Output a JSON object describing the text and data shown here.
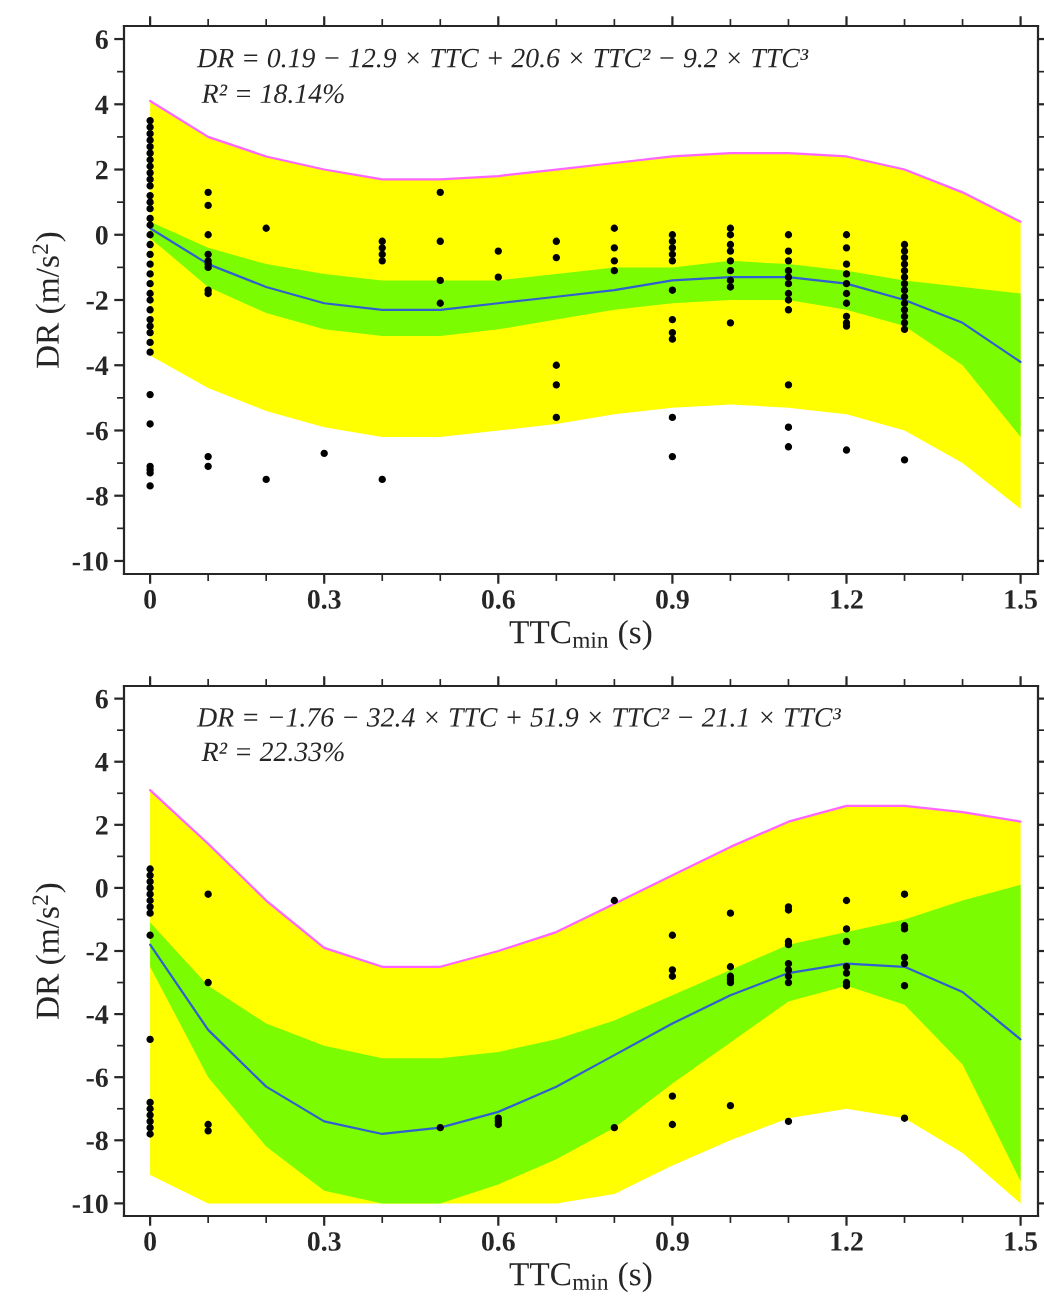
{
  "chart_data": [
    {
      "type": "scatter",
      "xlabel": "TTC$_{min}$ (s)",
      "ylabel": "DR (m/s$^{2}$)",
      "annotations": [
        "DR = 0.19 − 12.9 × TTC + 20.6 × TTC² − 9.2 × TTC³",
        "R² = 18.14%"
      ],
      "xlim": [
        -0.045,
        1.53
      ],
      "ylim": [
        -10.4,
        6.4
      ],
      "xticks": [
        0,
        0.3,
        0.6,
        0.9,
        1.2,
        1.5
      ],
      "yticks": [
        {
          "value": -10,
          "label": "-10"
        },
        {
          "value": -8,
          "label": "-8"
        },
        {
          "value": -6,
          "label": "-6"
        },
        {
          "value": -4,
          "label": "-4"
        },
        {
          "value": -2,
          "label": "-2"
        },
        0,
        2,
        4,
        6
      ],
      "series": [
        {
          "type": "line",
          "color": "#ff66ff",
          "x": [
            0,
            0.1,
            0.2,
            0.3,
            0.4,
            0.5,
            0.6,
            0.7,
            0.8,
            0.9,
            1.0,
            1.1,
            1.2,
            1.3,
            1.4,
            1.5
          ],
          "values": [
            4.1,
            3.0,
            2.4,
            2.0,
            1.7,
            1.7,
            1.8,
            2.0,
            2.2,
            2.4,
            2.5,
            2.5,
            2.4,
            2.0,
            1.3,
            0.4
          ],
          "upper": [
            4.1,
            3.0,
            2.4,
            2.0,
            1.7,
            1.7,
            1.8,
            2.0,
            2.2,
            2.4,
            2.5,
            2.5,
            2.4,
            2.0,
            1.3,
            0.4
          ],
          "lower": [
            -3.7,
            -4.7,
            -5.4,
            -5.9,
            -6.2,
            -6.2,
            -6.0,
            -5.8,
            -5.5,
            -5.3,
            -5.2,
            -5.3,
            -5.5,
            -6.0,
            -7.0,
            -8.4
          ]
        },
        {
          "type": "line",
          "color": "#3060d0",
          "x": [
            0,
            0.1,
            0.2,
            0.3,
            0.4,
            0.5,
            0.6,
            0.7,
            0.8,
            0.9,
            1.0,
            1.1,
            1.2,
            1.3,
            1.4,
            1.5
          ],
          "values": [
            0.2,
            -0.9,
            -1.6,
            -2.1,
            -2.3,
            -2.3,
            -2.1,
            -1.9,
            -1.7,
            -1.4,
            -1.3,
            -1.3,
            -1.5,
            -2.0,
            -2.7,
            -3.9
          ],
          "upper": [
            0.4,
            -0.4,
            -0.9,
            -1.2,
            -1.4,
            -1.4,
            -1.4,
            -1.2,
            -1.0,
            -1.0,
            -0.8,
            -0.9,
            -1.1,
            -1.4,
            -1.6,
            -1.8
          ],
          "lower": [
            -0.1,
            -1.6,
            -2.4,
            -2.9,
            -3.1,
            -3.1,
            -2.9,
            -2.6,
            -2.3,
            -2.1,
            -2.0,
            -2.0,
            -2.3,
            -2.8,
            -4.0,
            -6.2
          ]
        },
        {
          "color": "#000000",
          "x": [
            0,
            0,
            0,
            0,
            0,
            0,
            0,
            0,
            0,
            0,
            0,
            0,
            0,
            0,
            0,
            0,
            0,
            0,
            0,
            0,
            0,
            0,
            0,
            0,
            0,
            0,
            0,
            0,
            0,
            0,
            0,
            0,
            0,
            0,
            0,
            0,
            0.1,
            0.1,
            0.1,
            0.1,
            0.1,
            0.1,
            0.1,
            0.1,
            0.1,
            0.1,
            0.1,
            0.2,
            0.2,
            0.3,
            0.4,
            0.4,
            0.4,
            0.4,
            0.4,
            0.5,
            0.5,
            0.5,
            0.5,
            0.6,
            0.6,
            0.7,
            0.7,
            0.7,
            0.7,
            0.7,
            0.8,
            0.8,
            0.8,
            0.8,
            0.9,
            0.9,
            0.9,
            0.9,
            0.9,
            0.9,
            0.9,
            0.9,
            0.9,
            0.9,
            0.9,
            1.0,
            1.0,
            1.0,
            1.0,
            1.0,
            1.0,
            1.0,
            1.0,
            1.0,
            1.1,
            1.1,
            1.1,
            1.1,
            1.1,
            1.1,
            1.1,
            1.1,
            1.1,
            1.1,
            1.1,
            1.1,
            1.2,
            1.2,
            1.2,
            1.2,
            1.2,
            1.2,
            1.2,
            1.2,
            1.2,
            1.2,
            1.2,
            1.3,
            1.3,
            1.3,
            1.3,
            1.3,
            1.3,
            1.3,
            1.3,
            1.3,
            1.3,
            1.3,
            1.3,
            1.3,
            1.3,
            1.3
          ],
          "values": [
            3.5,
            3.3,
            3.1,
            2.9,
            2.7,
            2.5,
            2.3,
            2.1,
            1.9,
            1.7,
            1.5,
            1.2,
            1.0,
            0.8,
            0.5,
            0.3,
            0.0,
            -0.3,
            -0.6,
            -0.9,
            -1.2,
            -1.5,
            -1.8,
            -2.0,
            -2.3,
            -2.6,
            -2.8,
            -3.0,
            -3.3,
            -3.6,
            -4.9,
            -5.8,
            -7.1,
            -7.2,
            -7.3,
            -7.7,
            1.3,
            0.9,
            0,
            -0.6,
            -0.8,
            -0.9,
            -1.0,
            -1.7,
            -1.8,
            -6.8,
            -7.1,
            0.2,
            -7.5,
            -6.7,
            -0.2,
            -0.4,
            -0.6,
            -0.8,
            -7.5,
            1.3,
            -0.2,
            -1.4,
            -2.1,
            -0.5,
            -1.3,
            -0.2,
            -0.7,
            -4.0,
            -4.6,
            -5.6,
            0.2,
            -0.4,
            -0.8,
            -1.1,
            0,
            -0.2,
            -0.4,
            -0.6,
            -0.8,
            -1.7,
            -2.6,
            -3.0,
            -3.2,
            -5.6,
            -6.8,
            0.2,
            0,
            -0.3,
            -0.5,
            -0.8,
            -1.1,
            -1.4,
            -1.6,
            -2.7,
            0,
            -0.5,
            -0.8,
            -1.1,
            -1.3,
            -1.5,
            -1.8,
            -2.0,
            -2.3,
            -4.6,
            -5.9,
            -6.5,
            0,
            -0.4,
            -0.9,
            -1.2,
            -1.5,
            -1.8,
            -2.1,
            -2.5,
            -2.7,
            -2.8,
            -6.6,
            -0.3,
            -0.5,
            -0.7,
            -0.9,
            -1.1,
            -1.3,
            -1.5,
            -1.7,
            -1.9,
            -2.1,
            -2.3,
            -2.5,
            -2.7,
            -2.9,
            -6.9
          ]
        }
      ]
    },
    {
      "type": "scatter",
      "xlabel": "TTC$_{min}$ (s)",
      "ylabel": "DR (m/s$^{2}$)",
      "annotations": [
        "DR = −1.76 − 32.4 × TTC + 51.9 × TTC² − 21.1 × TTC³",
        "R² = 22.33%"
      ],
      "xlim": [
        -0.045,
        1.53
      ],
      "ylim": [
        -10.4,
        6.4
      ],
      "xticks": [
        0,
        0.3,
        0.6,
        0.9,
        1.2,
        1.5
      ],
      "yticks": [
        {
          "value": -10,
          "label": "-10"
        },
        {
          "value": -8,
          "label": "-8"
        },
        {
          "value": -6,
          "label": "-6"
        },
        {
          "value": -4,
          "label": "-4"
        },
        {
          "value": -2,
          "label": "-2"
        },
        0,
        2,
        4,
        6
      ],
      "series": [
        {
          "type": "line",
          "color": "#ff66ff",
          "x": [
            0,
            0.1,
            0.2,
            0.3,
            0.4,
            0.5,
            0.6,
            0.7,
            0.8,
            0.9,
            1.0,
            1.1,
            1.2,
            1.3,
            1.4,
            1.5
          ],
          "values": [
            3.1,
            1.4,
            -0.4,
            -1.9,
            -2.5,
            -2.5,
            -2.0,
            -1.4,
            -0.5,
            0.4,
            1.3,
            2.1,
            2.6,
            2.6,
            2.4,
            2.1
          ],
          "upper": [
            3.1,
            1.4,
            -0.4,
            -1.9,
            -2.5,
            -2.5,
            -2.0,
            -1.4,
            -0.5,
            0.4,
            1.3,
            2.1,
            2.6,
            2.6,
            2.4,
            2.1
          ],
          "lower": [
            -9.1,
            -10,
            -10,
            -10,
            -10,
            -10,
            -10,
            -10,
            -9.7,
            -8.8,
            -8.0,
            -7.3,
            -7.0,
            -7.3,
            -8.4,
            -10
          ]
        },
        {
          "type": "line",
          "color": "#3060d0",
          "x": [
            0,
            0.1,
            0.2,
            0.3,
            0.4,
            0.5,
            0.6,
            0.7,
            0.8,
            0.9,
            1.0,
            1.1,
            1.2,
            1.3,
            1.4,
            1.5
          ],
          "values": [
            -1.8,
            -4.5,
            -6.3,
            -7.4,
            -7.8,
            -7.6,
            -7.1,
            -6.3,
            -5.3,
            -4.3,
            -3.4,
            -2.7,
            -2.4,
            -2.5,
            -3.3,
            -4.8
          ],
          "upper": [
            -1.1,
            -3.1,
            -4.3,
            -5.0,
            -5.4,
            -5.4,
            -5.2,
            -4.8,
            -4.2,
            -3.4,
            -2.6,
            -1.8,
            -1.4,
            -1.0,
            -0.4,
            0.1
          ],
          "lower": [
            -2.5,
            -6.0,
            -8.2,
            -9.6,
            -10,
            -10,
            -9.4,
            -8.6,
            -7.6,
            -6.2,
            -4.9,
            -3.6,
            -3.1,
            -3.7,
            -5.6,
            -9.3
          ]
        },
        {
          "color": "#000000",
          "x": [
            0,
            0,
            0,
            0,
            0,
            0,
            0,
            0,
            0,
            0,
            0,
            0,
            0,
            0,
            0,
            0,
            0.1,
            0.1,
            0.1,
            0.1,
            0.5,
            0.6,
            0.6,
            0.6,
            0.8,
            0.8,
            0.9,
            0.9,
            0.9,
            0.9,
            0.9,
            1.0,
            1.0,
            1.0,
            1.0,
            1.0,
            1.0,
            1.1,
            1.1,
            1.1,
            1.1,
            1.1,
            1.1,
            1.1,
            1.1,
            1.1,
            1.2,
            1.2,
            1.2,
            1.2,
            1.2,
            1.2,
            1.2,
            1.3,
            1.3,
            1.3,
            1.3,
            1.3,
            1.3,
            1.3
          ],
          "values": [
            0.6,
            0.4,
            0.2,
            0,
            -0.2,
            -0.4,
            -0.6,
            -0.8,
            -1.5,
            -4.8,
            -6.8,
            -7.0,
            -7.2,
            -7.4,
            -7.6,
            -7.8,
            -0.2,
            -3.0,
            -7.5,
            -7.7,
            -7.6,
            -7.3,
            -7.4,
            -7.5,
            -0.4,
            -7.6,
            -1.5,
            -2.6,
            -2.8,
            -6.6,
            -7.5,
            -0.8,
            -2.5,
            -2.8,
            -2.9,
            -3.0,
            -6.9,
            -0.6,
            -0.7,
            -1.7,
            -1.8,
            -2.4,
            -2.6,
            -2.8,
            -3.0,
            -7.4,
            -0.4,
            -1.3,
            -1.7,
            -2.5,
            -2.7,
            -3.0,
            -3.1,
            -0.2,
            -1.2,
            -1.3,
            -2.2,
            -2.4,
            -3.1,
            -7.3
          ]
        }
      ]
    }
  ]
}
